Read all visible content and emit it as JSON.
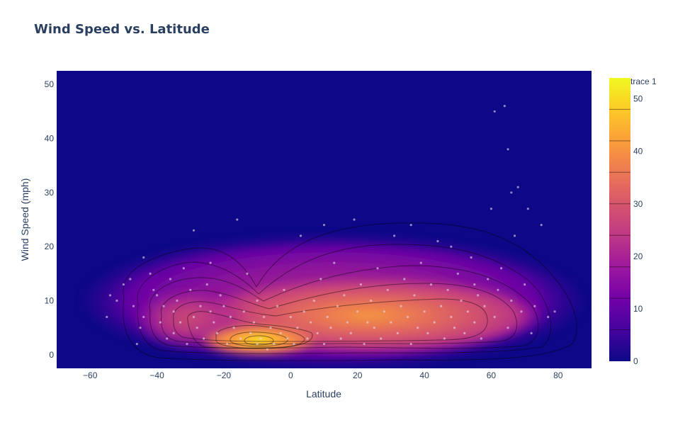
{
  "chart_data": {
    "type": "heatmap",
    "title": "Wind Speed vs. Latitude",
    "xlabel": "Latitude",
    "ylabel": "Wind Speed (mph)",
    "xlim": [
      -70,
      90
    ],
    "ylim": [
      -2.5,
      52.5
    ],
    "x_ticks": [
      -60,
      -40,
      -20,
      0,
      20,
      40,
      60,
      80
    ],
    "y_ticks": [
      0,
      10,
      20,
      30,
      40,
      50
    ],
    "colorbar": {
      "title": "trace 1",
      "range": [
        0,
        54
      ],
      "ticks": [
        0,
        10,
        20,
        30,
        40,
        50
      ]
    },
    "density_peaks": [
      {
        "x": -10,
        "y": 2.5,
        "value": 54
      },
      {
        "x": 40,
        "y": 5.5,
        "value": 40
      },
      {
        "x": -30,
        "y": 6,
        "value": 26
      }
    ],
    "series": [
      {
        "points": [
          [
            -55,
            7
          ],
          [
            -54,
            11
          ],
          [
            -52,
            10
          ],
          [
            -48,
            14
          ],
          [
            -47,
            9
          ],
          [
            -46,
            2
          ],
          [
            -45,
            5
          ],
          [
            -44,
            7
          ],
          [
            -42,
            15
          ],
          [
            -41,
            12
          ],
          [
            -40,
            11
          ],
          [
            -39,
            6
          ],
          [
            -38,
            9
          ],
          [
            -37,
            3
          ],
          [
            -36,
            14
          ],
          [
            -35,
            8
          ],
          [
            -35,
            4
          ],
          [
            -34,
            10
          ],
          [
            -33,
            6
          ],
          [
            -32,
            16
          ],
          [
            -31,
            2
          ],
          [
            -30,
            12
          ],
          [
            -29,
            7
          ],
          [
            -29,
            23
          ],
          [
            -28,
            5
          ],
          [
            -27,
            9
          ],
          [
            -26,
            3
          ],
          [
            -25,
            13
          ],
          [
            -24,
            8
          ],
          [
            -23,
            6
          ],
          [
            -22,
            4
          ],
          [
            -21,
            11
          ],
          [
            -20,
            9
          ],
          [
            -19,
            2
          ],
          [
            -18,
            7
          ],
          [
            -17,
            5
          ],
          [
            -16,
            25
          ],
          [
            -15,
            3
          ],
          [
            -14,
            8
          ],
          [
            -13,
            15
          ],
          [
            -12,
            4
          ],
          [
            -11,
            6
          ],
          [
            -10,
            2
          ],
          [
            -10,
            10
          ],
          [
            -9,
            3
          ],
          [
            -8,
            7
          ],
          [
            -7,
            1
          ],
          [
            -6,
            5
          ],
          [
            -5,
            2
          ],
          [
            -4,
            9
          ],
          [
            -3,
            4
          ],
          [
            -2,
            12
          ],
          [
            -1,
            3
          ],
          [
            0,
            7
          ],
          [
            1,
            2
          ],
          [
            2,
            5
          ],
          [
            3,
            22
          ],
          [
            4,
            8
          ],
          [
            5,
            3
          ],
          [
            6,
            6
          ],
          [
            7,
            10
          ],
          [
            8,
            4
          ],
          [
            9,
            14
          ],
          [
            10,
            2
          ],
          [
            11,
            7
          ],
          [
            12,
            5
          ],
          [
            13,
            17
          ],
          [
            14,
            9
          ],
          [
            15,
            3
          ],
          [
            16,
            11
          ],
          [
            17,
            6
          ],
          [
            18,
            4
          ],
          [
            19,
            25
          ],
          [
            20,
            8
          ],
          [
            21,
            13
          ],
          [
            22,
            2
          ],
          [
            23,
            6
          ],
          [
            24,
            10
          ],
          [
            25,
            5
          ],
          [
            26,
            16
          ],
          [
            27,
            3
          ],
          [
            28,
            8
          ],
          [
            29,
            12
          ],
          [
            30,
            6
          ],
          [
            31,
            22
          ],
          [
            32,
            4
          ],
          [
            33,
            9
          ],
          [
            34,
            14
          ],
          [
            35,
            7
          ],
          [
            36,
            2
          ],
          [
            37,
            11
          ],
          [
            38,
            5
          ],
          [
            39,
            17
          ],
          [
            40,
            8
          ],
          [
            41,
            4
          ],
          [
            42,
            13
          ],
          [
            43,
            6
          ],
          [
            44,
            21
          ],
          [
            45,
            9
          ],
          [
            46,
            3
          ],
          [
            47,
            12
          ],
          [
            48,
            7
          ],
          [
            49,
            5
          ],
          [
            50,
            15
          ],
          [
            51,
            10
          ],
          [
            52,
            4
          ],
          [
            53,
            8
          ],
          [
            54,
            18
          ],
          [
            55,
            6
          ],
          [
            56,
            11
          ],
          [
            57,
            3
          ],
          [
            58,
            9
          ],
          [
            59,
            14
          ],
          [
            60,
            27
          ],
          [
            61,
            7
          ],
          [
            62,
            12
          ],
          [
            63,
            16
          ],
          [
            64,
            46
          ],
          [
            65,
            38
          ],
          [
            65,
            5
          ],
          [
            66,
            10
          ],
          [
            67,
            22
          ],
          [
            68,
            31
          ],
          [
            69,
            8
          ],
          [
            70,
            13
          ],
          [
            71,
            27
          ],
          [
            72,
            4
          ],
          [
            73,
            9
          ],
          [
            75,
            24
          ],
          [
            77,
            7
          ],
          [
            61,
            45
          ],
          [
            66,
            30
          ],
          [
            79,
            8
          ],
          [
            -44,
            18
          ],
          [
            -50,
            13
          ],
          [
            10,
            24
          ],
          [
            36,
            24
          ],
          [
            48,
            20
          ],
          [
            55,
            13
          ],
          [
            -24,
            17
          ]
        ]
      }
    ]
  }
}
